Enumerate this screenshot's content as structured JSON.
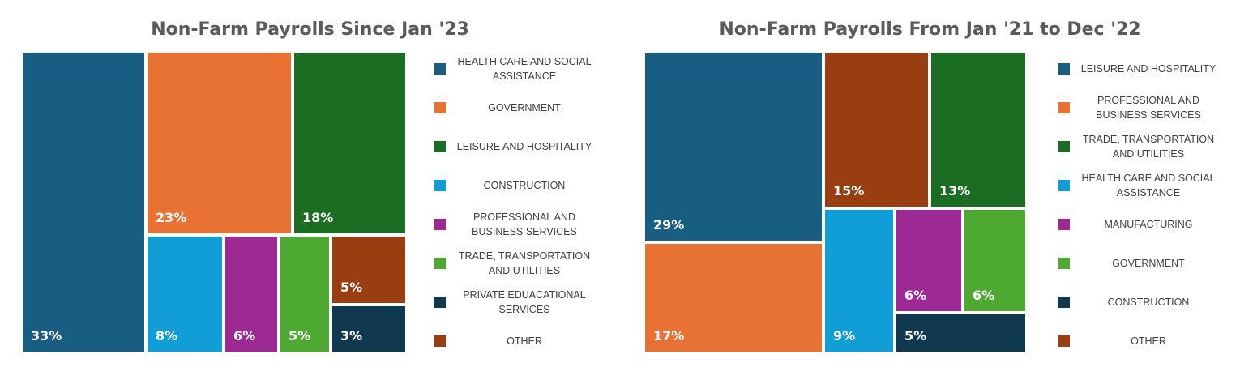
{
  "charts": [
    {
      "title": "Non-Farm Payrolls Since Jan '23",
      "chart_data": {
        "type": "treemap",
        "title": "Non-Farm Payrolls Since Jan '23",
        "unit": "%",
        "items": [
          {
            "name": "HEALTH CARE AND SOCIAL ASSISTANCE",
            "value": 33,
            "label": "33%",
            "color": "#175e82"
          },
          {
            "name": "GOVERNMENT",
            "value": 23,
            "label": "23%",
            "color": "#e87134"
          },
          {
            "name": "LEISURE AND HOSPITALITY",
            "value": 18,
            "label": "18%",
            "color": "#1b6d24"
          },
          {
            "name": "CONSTRUCTION",
            "value": 8,
            "label": "8%",
            "color": "#119ed6"
          },
          {
            "name": "PROFESSIONAL AND BUSINESS SERVICES",
            "value": 6,
            "label": "6%",
            "color": "#9d2a94"
          },
          {
            "name": "TRADE, TRANSPORTATION AND UTILITIES",
            "value": 5,
            "label": "5%",
            "color": "#4ea933"
          },
          {
            "name": "PRIVATE EDUACATIONAL SERVICES",
            "value": 3,
            "label": "3%",
            "color": "#10384f"
          },
          {
            "name": "OTHER",
            "value": 5,
            "label": "5%",
            "color": "#983e10"
          }
        ]
      }
    },
    {
      "title": "Non-Farm Payrolls From Jan '21 to Dec '22",
      "chart_data": {
        "type": "treemap",
        "title": "Non-Farm Payrolls From Jan '21 to Dec '22",
        "unit": "%",
        "items": [
          {
            "name": "LEISURE AND HOSPITALITY",
            "value": 29,
            "label": "29%",
            "color": "#175e82"
          },
          {
            "name": "PROFESSIONAL AND BUSINESS SERVICES",
            "value": 17,
            "label": "17%",
            "color": "#e87134"
          },
          {
            "name": "TRADE, TRANSPORTATION AND UTILITIES",
            "value": 13,
            "label": "13%",
            "color": "#1b6d24"
          },
          {
            "name": "HEALTH CARE AND SOCIAL ASSISTANCE",
            "value": 9,
            "label": "9%",
            "color": "#119ed6"
          },
          {
            "name": "MANUFACTURING",
            "value": 6,
            "label": "6%",
            "color": "#9d2a94"
          },
          {
            "name": "GOVERNMENT",
            "value": 6,
            "label": "6%",
            "color": "#4ea933"
          },
          {
            "name": "CONSTRUCTION",
            "value": 5,
            "label": "5%",
            "color": "#10384f"
          },
          {
            "name": "OTHER",
            "value": 15,
            "label": "15%",
            "color": "#983e10"
          }
        ]
      }
    }
  ]
}
